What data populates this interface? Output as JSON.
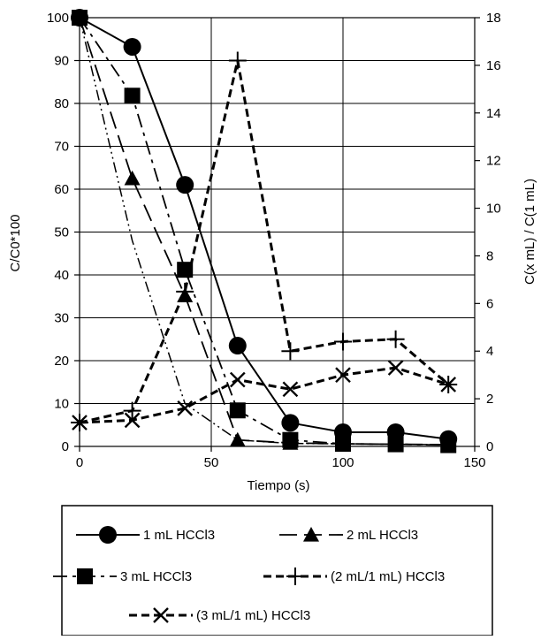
{
  "chart_data": {
    "type": "line",
    "xlabel": "Tiempo (s)",
    "ylabel": "C/C0*100",
    "y2label": "C(x mL) / C(1 mL)",
    "xlim": [
      0,
      150
    ],
    "ylim": [
      0,
      100
    ],
    "y2lim": [
      0,
      18
    ],
    "xticks": [
      0,
      50,
      100,
      150
    ],
    "yticks": [
      0,
      10,
      20,
      30,
      40,
      50,
      60,
      70,
      80,
      90,
      100
    ],
    "y2ticks": [
      0,
      2,
      4,
      6,
      8,
      10,
      12,
      14,
      16,
      18
    ],
    "grid": true,
    "legend_position": "bottom",
    "series": [
      {
        "name": "1 mL HCCl3",
        "axis": "left",
        "marker": "circle",
        "line": "solid",
        "x": [
          0,
          20,
          40,
          60,
          80,
          100,
          120,
          140
        ],
        "y": [
          100,
          93.2,
          61,
          23.5,
          5.5,
          3.3,
          3.3,
          1.7
        ]
      },
      {
        "name": "2 mL  HCCl3",
        "axis": "left",
        "marker": "triangle",
        "line": "longdash",
        "x": [
          0,
          20,
          40,
          60,
          80,
          100,
          120,
          140
        ],
        "y": [
          100,
          62.5,
          35.2,
          1.5,
          0.8,
          0.6,
          0.5,
          0.4
        ]
      },
      {
        "name": "3 mL  HCCl3",
        "axis": "left",
        "marker": "square",
        "line": "dashdot",
        "x": [
          0,
          20,
          40,
          60,
          80,
          100,
          120,
          140
        ],
        "y": [
          100,
          81.8,
          41.2,
          8.4,
          1.5,
          0.6,
          0.5,
          0.3
        ]
      },
      {
        "name": "(2 mL/1 mL) HCCl3",
        "axis": "right",
        "marker": "plus",
        "line": "dash",
        "x": [
          0,
          20,
          40,
          60,
          80,
          100,
          120,
          140
        ],
        "y": [
          1.0,
          1.5,
          6.5,
          16.2,
          4.0,
          4.4,
          4.5,
          2.6
        ]
      },
      {
        "name": "(3 mL/1 mL)  HCCl3",
        "axis": "right",
        "marker": "x",
        "line": "dash",
        "x": [
          0,
          20,
          40,
          60,
          80,
          100,
          120,
          140
        ],
        "y": [
          1.0,
          1.1,
          1.6,
          2.8,
          2.4,
          3.0,
          3.3,
          2.6
        ]
      },
      {
        "name": "",
        "axis": "left",
        "marker": "none",
        "line": "dashdotdot",
        "x": [
          0,
          20,
          40,
          60,
          80,
          100,
          120,
          140
        ],
        "y": [
          100,
          48,
          10,
          1.5,
          0.7,
          0.6,
          0.5,
          0.4
        ]
      }
    ]
  }
}
